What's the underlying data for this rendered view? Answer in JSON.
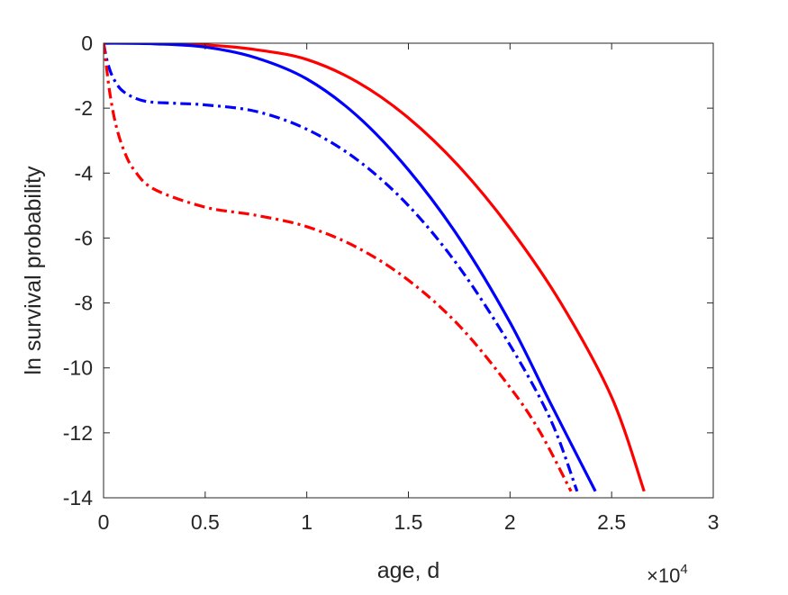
{
  "chart_data": {
    "type": "line",
    "title": "",
    "xlabel": "age, d",
    "ylabel": "ln survival probability",
    "x_exponent_label": "×10",
    "x_exponent_power": "4",
    "xlim": [
      0,
      3
    ],
    "ylim": [
      -14,
      0
    ],
    "x_unit_multiplier": 10000,
    "xticks": [
      0,
      0.5,
      1,
      1.5,
      2,
      2.5,
      3
    ],
    "xtick_labels": [
      "0",
      "0.5",
      "1",
      "1.5",
      "2",
      "2.5",
      "3"
    ],
    "yticks": [
      0,
      -2,
      -4,
      -6,
      -8,
      -10,
      -12,
      -14
    ],
    "ytick_labels": [
      "0",
      "-2",
      "-4",
      "-6",
      "-8",
      "-10",
      "-12",
      "-14"
    ],
    "grid": false,
    "legend": "none",
    "series": [
      {
        "color": "#ff0000",
        "style": "solid",
        "points": [
          [
            0,
            0
          ],
          [
            0.25,
            0
          ],
          [
            0.5,
            -0.05
          ],
          [
            0.75,
            -0.2
          ],
          [
            1.0,
            -0.5
          ],
          [
            1.25,
            -1.2
          ],
          [
            1.5,
            -2.3
          ],
          [
            1.75,
            -3.8
          ],
          [
            2.0,
            -5.7
          ],
          [
            2.25,
            -8.0
          ],
          [
            2.5,
            -10.9
          ],
          [
            2.66,
            -13.8
          ]
        ]
      },
      {
        "color": "#0000ff",
        "style": "solid",
        "points": [
          [
            0,
            0
          ],
          [
            0.25,
            -0.02
          ],
          [
            0.5,
            -0.12
          ],
          [
            0.75,
            -0.45
          ],
          [
            1.0,
            -1.1
          ],
          [
            1.25,
            -2.25
          ],
          [
            1.5,
            -3.9
          ],
          [
            1.75,
            -6.0
          ],
          [
            2.0,
            -8.6
          ],
          [
            2.2,
            -11.1
          ],
          [
            2.42,
            -13.8
          ]
        ]
      },
      {
        "color": "#0000ff",
        "style": "dashdot",
        "points": [
          [
            0,
            0
          ],
          [
            0.02,
            -0.6
          ],
          [
            0.05,
            -1.1
          ],
          [
            0.1,
            -1.5
          ],
          [
            0.2,
            -1.78
          ],
          [
            0.35,
            -1.85
          ],
          [
            0.5,
            -1.9
          ],
          [
            0.75,
            -2.1
          ],
          [
            1.0,
            -2.65
          ],
          [
            1.25,
            -3.6
          ],
          [
            1.5,
            -5.0
          ],
          [
            1.75,
            -6.9
          ],
          [
            2.0,
            -9.3
          ],
          [
            2.2,
            -11.6
          ],
          [
            2.33,
            -13.8
          ]
        ]
      },
      {
        "color": "#ff0000",
        "style": "dashdot",
        "points": [
          [
            0,
            0
          ],
          [
            0.01,
            -0.5
          ],
          [
            0.03,
            -1.5
          ],
          [
            0.06,
            -2.5
          ],
          [
            0.1,
            -3.3
          ],
          [
            0.15,
            -3.9
          ],
          [
            0.25,
            -4.5
          ],
          [
            0.5,
            -5.05
          ],
          [
            0.75,
            -5.3
          ],
          [
            1.0,
            -5.65
          ],
          [
            1.25,
            -6.3
          ],
          [
            1.5,
            -7.3
          ],
          [
            1.75,
            -8.7
          ],
          [
            2.0,
            -10.6
          ],
          [
            2.15,
            -12.0
          ],
          [
            2.3,
            -13.8
          ]
        ]
      }
    ]
  }
}
